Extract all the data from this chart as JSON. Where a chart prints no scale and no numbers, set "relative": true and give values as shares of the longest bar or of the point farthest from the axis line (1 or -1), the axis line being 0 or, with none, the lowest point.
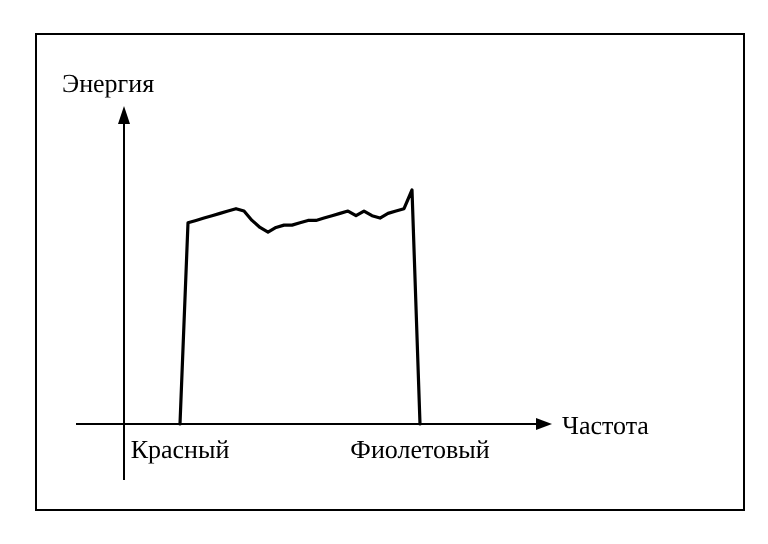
{
  "chart_data": {
    "type": "line",
    "relative": true,
    "xlabel": "Частота",
    "ylabel": "Энергия",
    "color": "#000000",
    "categories": [
      "Красный",
      null,
      null,
      null,
      null,
      null,
      null,
      null,
      null,
      null,
      null,
      null,
      null,
      null,
      null,
      null,
      null,
      null,
      null,
      null,
      null,
      null,
      null,
      null,
      null,
      null,
      null,
      null,
      null,
      null,
      "Фиолетовый"
    ],
    "values": [
      0,
      0.86,
      0.87,
      0.88,
      0.89,
      0.9,
      0.91,
      0.92,
      0.91,
      0.87,
      0.84,
      0.82,
      0.84,
      0.85,
      0.85,
      0.86,
      0.87,
      0.87,
      0.88,
      0.89,
      0.9,
      0.91,
      0.89,
      0.91,
      0.89,
      0.88,
      0.9,
      0.91,
      0.92,
      1,
      0
    ]
  }
}
